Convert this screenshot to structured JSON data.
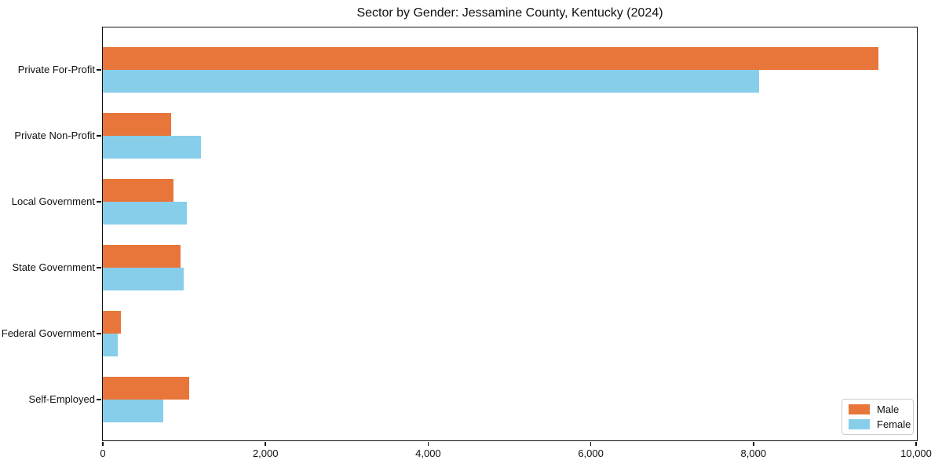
{
  "title": "Sector by Gender: Jessamine County, Kentucky (2024)",
  "chart_data": {
    "type": "bar",
    "orientation": "horizontal",
    "title": "Sector by Gender: Jessamine County, Kentucky (2024)",
    "categories": [
      "Private For-Profit",
      "Private Non-Profit",
      "Local Government",
      "State Government",
      "Federal Government",
      "Self-Employed"
    ],
    "series": [
      {
        "name": "Male",
        "color": "#e8763a",
        "values": [
          9540,
          840,
          865,
          955,
          225,
          1060
        ]
      },
      {
        "name": "Female",
        "color": "#87ceeb",
        "values": [
          8070,
          1205,
          1035,
          995,
          185,
          745
        ]
      }
    ],
    "xlim": [
      0,
      10000
    ],
    "xticks": [
      0,
      2000,
      4000,
      6000,
      8000,
      10000
    ],
    "xtick_labels": [
      "0",
      "2,000",
      "4,000",
      "6,000",
      "8,000",
      "10,000"
    ],
    "legend": {
      "position": "lower right",
      "entries": [
        "Male",
        "Female"
      ]
    },
    "grid": false,
    "background": "#ffffff",
    "spine_color": "#101010"
  }
}
